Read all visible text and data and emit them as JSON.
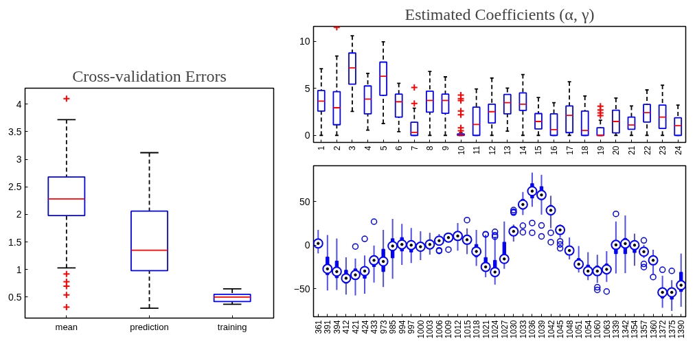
{
  "chart_data": [
    {
      "type": "box",
      "title": "Cross-validation Errors",
      "categories": [
        "mean",
        "prediction",
        "training"
      ],
      "ylim": [
        0.12,
        4.29
      ],
      "yticks": [
        0.5,
        1,
        1.5,
        2,
        2.5,
        3,
        3.5,
        4
      ],
      "marker": "cross",
      "boxes": [
        {
          "low": 1.03,
          "q1": 1.98,
          "median": 2.28,
          "q3": 2.68,
          "high": 3.72,
          "outliers": [
            4.1,
            0.92,
            0.78,
            0.7,
            0.54,
            0.32
          ]
        },
        {
          "low": 0.3,
          "q1": 0.98,
          "median": 1.35,
          "q3": 2.06,
          "high": 3.12
        },
        {
          "low": 0.37,
          "q1": 0.42,
          "median": 0.5,
          "q3": 0.55,
          "high": 0.65
        }
      ]
    },
    {
      "type": "box",
      "title": "Estimated Coefficients (α, γ)",
      "categories": [
        "1",
        "2",
        "3",
        "4",
        "5",
        "6",
        "7",
        "8",
        "9",
        "10",
        "11",
        "12",
        "13",
        "14",
        "15",
        "16",
        "17",
        "18",
        "19",
        "20",
        "21",
        "22",
        "23",
        "24"
      ],
      "ylim": [
        -0.75,
        11.6
      ],
      "yticks": [
        0,
        5,
        10
      ],
      "marker": "cross",
      "boxes": [
        {
          "low": 0,
          "q1": 2.58,
          "median": 3.65,
          "q3": 4.77,
          "high": 7.1
        },
        {
          "low": 0,
          "q1": 1.13,
          "median": 2.94,
          "q3": 4.65,
          "high": 8.45,
          "outliers": [
            11.5
          ]
        },
        {
          "low": 2.55,
          "q1": 5.45,
          "median": 7.19,
          "q3": 8.77,
          "high": 10.6
        },
        {
          "low": 0.55,
          "q1": 2.29,
          "median": 3.87,
          "q3": 5.26,
          "high": 6.6
        },
        {
          "low": 1.26,
          "q1": 4.26,
          "median": 6.29,
          "q3": 7.8,
          "high": 9.97
        },
        {
          "low": 0.39,
          "q1": 1.94,
          "median": 3.58,
          "q3": 4.39,
          "high": 5.55
        },
        {
          "low": 0,
          "q1": 0,
          "median": 0.32,
          "q3": 1.39,
          "high": 2.9,
          "outliers": [
            5.1,
            3.4
          ]
        },
        {
          "low": 0,
          "q1": 2.48,
          "median": 3.71,
          "q3": 4.71,
          "high": 6.8
        },
        {
          "low": 0,
          "q1": 2.35,
          "median": 3.71,
          "q3": 4.39,
          "high": 6.23
        },
        {
          "low": 0,
          "q1": 0,
          "median": 0.05,
          "q3": 0.15,
          "high": 0.3,
          "outliers": [
            4.3,
            3.9,
            3.7,
            2.6,
            2.2,
            0.8,
            0.5
          ]
        },
        {
          "low": 0,
          "q1": 0,
          "median": 1.16,
          "q3": 3.0,
          "high": 4.94
        },
        {
          "low": 0,
          "q1": 1.32,
          "median": 2.52,
          "q3": 3.32,
          "high": 6.1
        },
        {
          "low": 0.45,
          "q1": 2.29,
          "median": 3.48,
          "q3": 4.35,
          "high": 5.03
        },
        {
          "low": 0,
          "q1": 2.65,
          "median": 3.32,
          "q3": 4.52,
          "high": 6.48
        },
        {
          "low": 0,
          "q1": 0.68,
          "median": 1.48,
          "q3": 2.32,
          "high": 4.03
        },
        {
          "low": 0,
          "q1": 0,
          "median": 0.61,
          "q3": 2.29,
          "high": 3.48
        },
        {
          "low": 0,
          "q1": 0.29,
          "median": 2.13,
          "q3": 3.13,
          "high": 5.71
        },
        {
          "low": 0,
          "q1": 0,
          "median": 0.52,
          "q3": 2.58,
          "high": 4.19
        },
        {
          "low": 0,
          "q1": 0,
          "median": 0,
          "q3": 0.81,
          "high": 1.61,
          "outliers": [
            3.1,
            2.7,
            2.4,
            2.1
          ]
        },
        {
          "low": 0,
          "q1": 0.26,
          "median": 1.48,
          "q3": 2.68,
          "high": 3.97
        },
        {
          "low": 0,
          "q1": 0.65,
          "median": 1.1,
          "q3": 1.94,
          "high": 3.13
        },
        {
          "low": 0,
          "q1": 1.42,
          "median": 2.42,
          "q3": 3.29,
          "high": 4.84
        },
        {
          "low": 0,
          "q1": 0.74,
          "median": 1.94,
          "q3": 3.23,
          "high": 5.35
        },
        {
          "low": 0,
          "q1": 0,
          "median": 1.03,
          "q3": 1.87,
          "high": 3.23
        }
      ]
    },
    {
      "type": "box",
      "categories": [
        "361",
        "391",
        "394",
        "412",
        "421",
        "424",
        "433",
        "973",
        "985",
        "994",
        "997",
        "1000",
        "1003",
        "1006",
        "1009",
        "1012",
        "1015",
        "1018",
        "1021",
        "1024",
        "1027",
        "1030",
        "1033",
        "1036",
        "1039",
        "1042",
        "1045",
        "1048",
        "1051",
        "1054",
        "1060",
        "1063",
        "1339",
        "1342",
        "1354",
        "1357",
        "1360",
        "1372",
        "1375",
        "1390"
      ],
      "ylim": [
        -82,
        91
      ],
      "yticks": [
        -50,
        0,
        50
      ],
      "marker": "circle",
      "boxes": [
        {
          "low": -9.5,
          "q1": -1.3,
          "median": 2,
          "q3": 4.6,
          "high": 17.4
        },
        {
          "low": -52,
          "q1": -33.8,
          "median": -27.2,
          "q3": -13.6,
          "high": 11.5
        },
        {
          "low": -51.3,
          "q1": -37.4,
          "median": -30.3,
          "q3": -18.2,
          "high": 7.7
        },
        {
          "low": -56.7,
          "q1": -43.6,
          "median": -37.9,
          "q3": -28.7,
          "high": -14
        },
        {
          "low": -57.7,
          "q1": -39.2,
          "median": -34.1,
          "q3": -27.2,
          "high": -15.4,
          "outliers": [
            -1.5
          ]
        },
        {
          "low": -55.6,
          "q1": -37.9,
          "median": -29.7,
          "q3": -24.6,
          "high": -11.8,
          "outliers": [
            7.2
          ]
        },
        {
          "low": -42.8,
          "q1": -24.6,
          "median": -17.4,
          "q3": -12.3,
          "high": -0.5,
          "outliers": [
            26.9
          ]
        },
        {
          "low": -48,
          "q1": -30.3,
          "median": -18.7,
          "q3": -4.6,
          "high": 17.4
        },
        {
          "low": -38.5,
          "q1": -14.6,
          "median": -1,
          "q3": 7.4,
          "high": 30
        },
        {
          "low": -22.6,
          "q1": -6.7,
          "median": 0.8,
          "q3": 8.7,
          "high": 24.4
        },
        {
          "low": -20.5,
          "q1": -7.9,
          "median": 0,
          "q3": 3.8,
          "high": 19.7
        },
        {
          "low": -17.2,
          "q1": -5.9,
          "median": -1.8,
          "q3": 3.1,
          "high": 15.9
        },
        {
          "low": -10.8,
          "q1": -2.3,
          "median": 0.8,
          "q3": 2.8,
          "high": 14.1
        },
        {
          "low": 0,
          "q1": 0,
          "median": 5.1,
          "q3": 6.4,
          "high": 12.8,
          "outliers": [
            -5.9,
            -6.7
          ]
        },
        {
          "low": 4.4,
          "q1": 6.4,
          "median": 8.7,
          "q3": 10.8,
          "high": 14.4,
          "outliers": [
            -5.1
          ]
        },
        {
          "low": -6.4,
          "q1": 5.9,
          "median": 10.5,
          "q3": 13.6,
          "high": 25.4
        },
        {
          "low": -10.3,
          "q1": 2.6,
          "median": 6.2,
          "q3": 11.3,
          "high": 19.2,
          "outliers": [
            28.7
          ]
        },
        {
          "low": -23.8,
          "q1": -13.3,
          "median": -7.2,
          "q3": 0.8,
          "high": 17.4
        },
        {
          "low": -36.8,
          "q1": -28.2,
          "median": -24.9,
          "q3": -14.2,
          "high": 11.9,
          "outliers": [
            12.6,
            12.2
          ]
        },
        {
          "low": -45.3,
          "q1": -35,
          "median": -30.8,
          "q3": -17.4,
          "high": 9.8,
          "outliers": [
            15.3,
            11.4,
            9.6
          ]
        },
        {
          "low": -27.2,
          "q1": -19.9,
          "median": -15.8,
          "q3": 3.4,
          "high": 27.2
        },
        {
          "low": 4.1,
          "q1": 13.2,
          "median": 15.8,
          "q3": 21.5,
          "high": 23.6,
          "outliers": [
            40.2,
            38.3,
            37.3
          ]
        },
        {
          "low": 34.5,
          "q1": 41.2,
          "median": 46.6,
          "q3": 52.6,
          "high": 60.9,
          "outliers": [
            22.3,
            14.8
          ]
        },
        {
          "low": 44,
          "q1": 54.1,
          "median": 61.9,
          "q3": 70.5,
          "high": 83.2,
          "outliers": [
            25.4,
            14.2
          ]
        },
        {
          "low": 35,
          "q1": 52.1,
          "median": 57.5,
          "q3": 67.1,
          "high": 80.6,
          "outliers": [
            22.5,
            10.1
          ]
        },
        {
          "low": 19.4,
          "q1": 35,
          "median": 39.9,
          "q3": 45.6,
          "high": 56.5,
          "outliers": [
            14.2,
            3.4
          ]
        },
        {
          "low": 8.5,
          "q1": 13.2,
          "median": 17.4,
          "q3": 19.7,
          "high": 23.8,
          "outliers": [
            4.4,
            0.8,
            -3.6
          ]
        },
        {
          "low": -16.3,
          "q1": -10.1,
          "median": -6.2,
          "q3": -2.6,
          "high": 8.8
        },
        {
          "low": -31.3,
          "q1": -26.7,
          "median": -21.8,
          "q3": -15.3,
          "high": -1
        },
        {
          "low": -40.2,
          "q1": -32.9,
          "median": -29.8,
          "q3": -22.8,
          "high": -8
        },
        {
          "low": -43.3,
          "q1": -32.9,
          "median": -29.8,
          "q3": -23.8,
          "high": -11.1,
          "outliers": [
            -48.2,
            -51.3
          ]
        },
        {
          "low": -42,
          "q1": -32.9,
          "median": -27.7,
          "q3": -21.5,
          "high": -7,
          "outliers": [
            -53.1
          ]
        },
        {
          "low": -32.4,
          "q1": -9.8,
          "median": 0.3,
          "q3": 4.7,
          "high": 27.2,
          "outliers": [
            35.8
          ]
        },
        {
          "low": -32.1,
          "q1": -9.8,
          "median": 1.8,
          "q3": 7.8,
          "high": 33.9
        },
        {
          "low": -23.6,
          "q1": -8.5,
          "median": 0,
          "q3": 2.1,
          "high": 13.2
        },
        {
          "low": -14.8,
          "q1": -10.1,
          "median": -7.5,
          "q3": -4.4,
          "high": 0.3,
          "outliers": [
            5.4,
            -21.5,
            -25.1
          ]
        },
        {
          "low": -32.9,
          "q1": -22.3,
          "median": -17.4,
          "q3": -14.8,
          "high": -5.4,
          "outliers": [
            -36.5
          ]
        },
        {
          "low": -71.8,
          "q1": -60.6,
          "median": -54.1,
          "q3": -49.2,
          "high": -35,
          "outliers": [
            -28.2
          ]
        },
        {
          "low": -75.4,
          "q1": -61.9,
          "median": -54.1,
          "q3": -50,
          "high": -40.2,
          "outliers": [
            -29.5
          ]
        },
        {
          "low": -70.5,
          "q1": -53.1,
          "median": -45.9,
          "q3": -31.1,
          "high": -9.6
        }
      ]
    }
  ]
}
